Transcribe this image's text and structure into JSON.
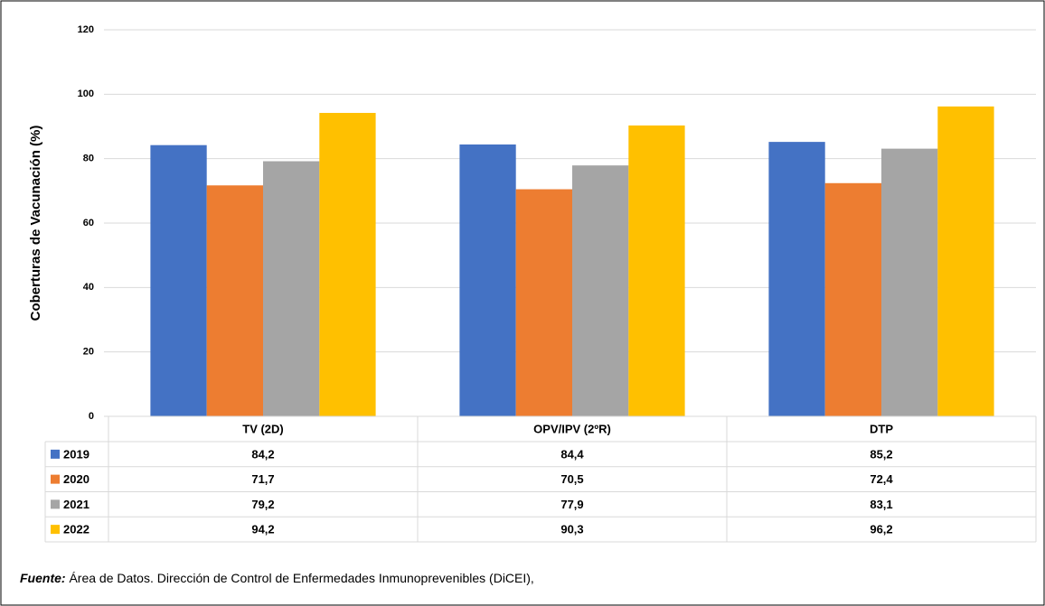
{
  "chart_data": {
    "type": "bar",
    "y_axis_label": "Coberturas de Vacunación (%)",
    "categories": [
      "TV (2D)",
      "OPV/IPV (2ºR)",
      "DTP"
    ],
    "series": [
      {
        "name": "2019",
        "color": "#4472c4",
        "values": [
          84.2,
          84.4,
          85.2
        ],
        "value_labels": [
          "84,2",
          "84,4",
          "85,2"
        ]
      },
      {
        "name": "2020",
        "color": "#ed7d31",
        "values": [
          71.7,
          70.5,
          72.4
        ],
        "value_labels": [
          "71,7",
          "70,5",
          "72,4"
        ]
      },
      {
        "name": "2021",
        "color": "#a5a5a5",
        "values": [
          79.2,
          77.9,
          83.1
        ],
        "value_labels": [
          "79,2",
          "77,9",
          "83,1"
        ]
      },
      {
        "name": "2022",
        "color": "#ffc000",
        "values": [
          94.2,
          90.3,
          96.2
        ],
        "value_labels": [
          "94,2",
          "90,3",
          "96,2"
        ]
      }
    ],
    "ylim": [
      0,
      120
    ],
    "yticks": [
      0,
      20,
      40,
      60,
      80,
      100,
      120
    ],
    "grid": true,
    "source_label": "Fuente:",
    "source_text": "Área de Datos. Dirección de Control de Enfermedades Inmunoprevenibles (DiCEI),"
  }
}
